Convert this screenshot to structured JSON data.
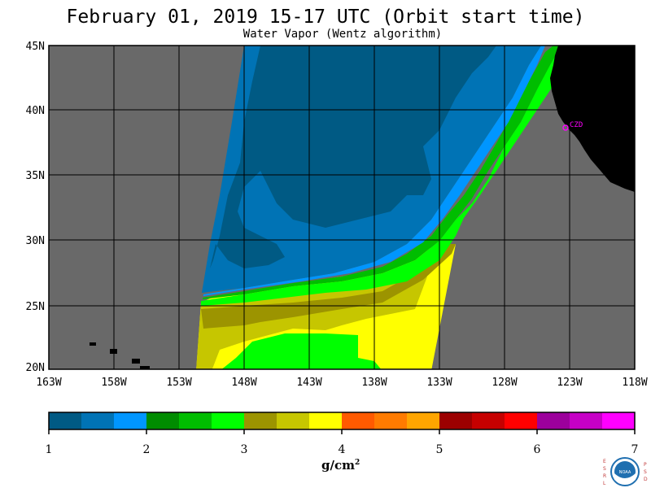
{
  "header": {
    "title": "February 01, 2019  15-17 UTC  (Orbit start time)",
    "subtitle": "Water Vapor (Wentz algorithm)"
  },
  "map": {
    "lat_labels": [
      "45N",
      "40N",
      "35N",
      "30N",
      "25N",
      "20N"
    ],
    "lon_labels": [
      "163W",
      "158W",
      "153W",
      "148W",
      "143W",
      "138W",
      "133W",
      "128W",
      "123W",
      "118W"
    ],
    "station_label": "CZD",
    "colors": {
      "nodata": "#696969",
      "land": "#000000",
      "station": "#ff00ff"
    }
  },
  "colorbar": {
    "ticks": [
      "1",
      "2",
      "3",
      "4",
      "5",
      "6",
      "7"
    ],
    "unit_base": "g/cm",
    "unit_exp": "2",
    "colors": [
      "#005a84",
      "#0073b5",
      "#0096ff",
      "#008c00",
      "#00bd00",
      "#00ff00",
      "#9c9400",
      "#c6c600",
      "#ffff00",
      "#ff5a00",
      "#ff7b00",
      "#ffa500",
      "#9c0000",
      "#c60000",
      "#ff0000",
      "#9c009c",
      "#c600c6",
      "#ff00ff"
    ]
  },
  "logo": {
    "left_letters": "ESRL",
    "right_letters": "PSD",
    "center": "NOAA"
  }
}
